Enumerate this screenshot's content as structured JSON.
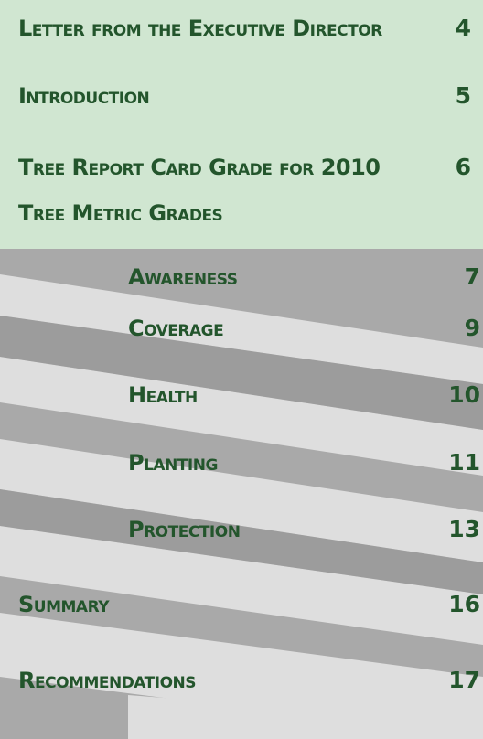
{
  "entries": [
    {
      "label": "Letter from the Executive Director",
      "page": 4
    },
    {
      "label": "Introduction",
      "page": 5
    },
    {
      "label": "Tree Report Card Grade for 2010",
      "page": 6
    },
    {
      "label": "Tree Metric Grades",
      "children": [
        {
          "label": "Awareness",
          "page": 7
        },
        {
          "label": "Coverage",
          "page": 9
        },
        {
          "label": "Health",
          "page": 10
        },
        {
          "label": "Planting",
          "page": 11
        },
        {
          "label": "Protection",
          "page": 13
        }
      ]
    },
    {
      "label": "Summary",
      "page": 16
    },
    {
      "label": "Recommendations",
      "page": 17
    }
  ]
}
